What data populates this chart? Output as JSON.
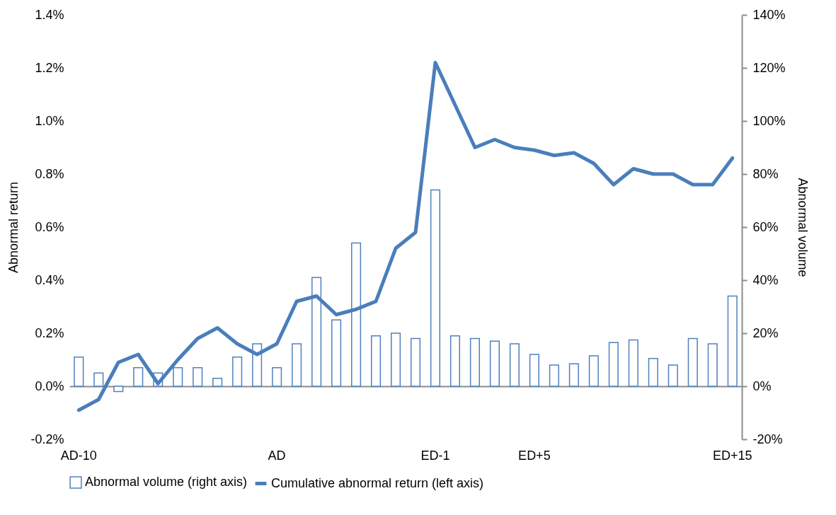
{
  "chart_data": {
    "type": "bar",
    "categories": [
      "AD-10",
      null,
      null,
      null,
      null,
      null,
      null,
      null,
      null,
      null,
      "AD",
      null,
      null,
      null,
      null,
      null,
      null,
      null,
      "ED-1",
      null,
      null,
      null,
      null,
      "ED+5",
      null,
      null,
      null,
      null,
      null,
      null,
      null,
      null,
      null,
      "ED+15"
    ],
    "series": [
      {
        "name": "Abnormal volume (right axis)",
        "axis": "y2",
        "color": "#4f81bd",
        "values": [
          11,
          5,
          -2,
          7,
          5,
          7,
          7,
          3,
          11,
          16,
          7,
          16,
          41,
          25,
          54,
          19,
          20,
          18,
          74,
          19,
          18,
          17,
          16,
          12,
          8,
          8.5,
          11.5,
          16.5,
          17.5,
          10.5,
          8,
          18,
          16,
          34
        ]
      },
      {
        "name": "Cumulative abnormal return (left axis)",
        "type": "line",
        "color": "#4a7ebb",
        "values": [
          -0.09,
          -0.05,
          0.09,
          0.12,
          0.01,
          0.1,
          0.18,
          0.22,
          0.16,
          0.12,
          0.16,
          0.32,
          0.34,
          0.27,
          0.29,
          0.32,
          0.52,
          0.58,
          1.22,
          1.06,
          0.9,
          0.93,
          0.9,
          0.89,
          0.87,
          0.88,
          0.84,
          0.76,
          0.82,
          0.8,
          0.8,
          0.76,
          0.76,
          0.86
        ]
      }
    ],
    "ylabel": "Abnormal return",
    "y2label": "Abnormal volume",
    "ylim": [
      -0.2,
      1.4
    ],
    "yticks": [
      {
        "value": -0.2,
        "label": "-0.2%"
      },
      {
        "value": 0,
        "label": "0.0%"
      },
      {
        "value": 0.2,
        "label": "0.2%"
      },
      {
        "value": 0.4,
        "label": "0.4%"
      },
      {
        "value": 0.6,
        "label": "0.6%"
      },
      {
        "value": 0.8,
        "label": "0.8%"
      },
      {
        "value": 1.0,
        "label": "1.0%"
      },
      {
        "value": 1.2,
        "label": "1.2%"
      },
      {
        "value": 1.4,
        "label": "1.4%"
      }
    ],
    "y2lim": [
      -20,
      140
    ],
    "y2ticks": [
      {
        "value": -20,
        "label": "-20%"
      },
      {
        "value": 0,
        "label": "0%"
      },
      {
        "value": 20,
        "label": "20%"
      },
      {
        "value": 40,
        "label": "40%"
      },
      {
        "value": 60,
        "label": "60%"
      },
      {
        "value": 80,
        "label": "80%"
      },
      {
        "value": 100,
        "label": "100%"
      },
      {
        "value": 120,
        "label": "120%"
      },
      {
        "value": 140,
        "label": "140%"
      }
    ],
    "legend": "bottom",
    "line_style": "solid"
  }
}
